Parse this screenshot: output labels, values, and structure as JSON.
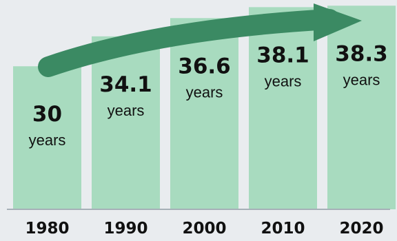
{
  "colors": {
    "background": "#e9ecef",
    "bar_fill": "#a8dbbf",
    "arrow": "#3b8a63",
    "text": "#111111"
  },
  "chart_data": {
    "type": "bar",
    "categories": [
      "1980",
      "1990",
      "2000",
      "2010",
      "2020"
    ],
    "values": [
      30,
      34.1,
      36.6,
      38.1,
      38.3
    ],
    "value_labels": [
      "30",
      "34.1",
      "36.6",
      "38.1",
      "38.3"
    ],
    "unit_label": "years",
    "title": "",
    "xlabel": "",
    "ylabel": "",
    "ylim": [
      0,
      45
    ],
    "grid": false,
    "legend": "none",
    "annotation": "upward-trend-arrow"
  }
}
